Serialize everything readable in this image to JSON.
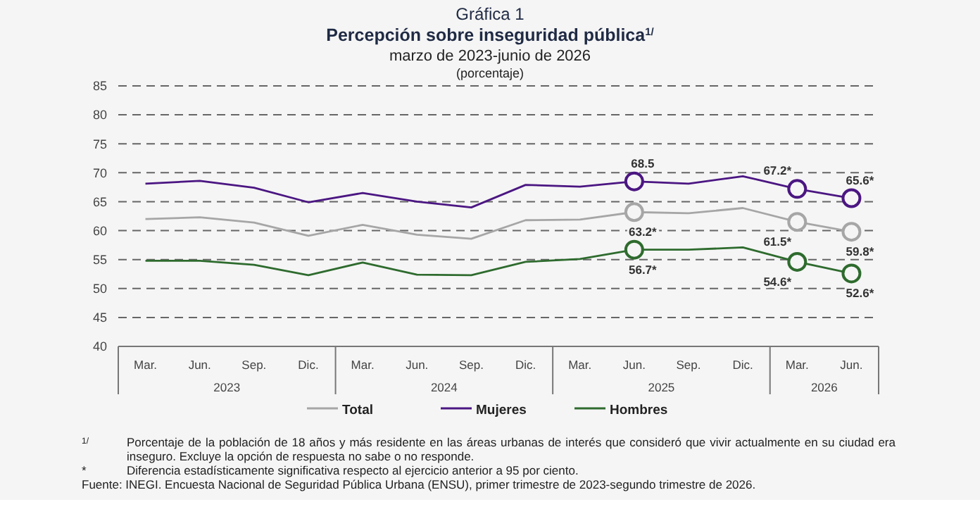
{
  "chart_data": {
    "type": "line",
    "title": "Percepción sobre inseguridad pública$^{1/}$",
    "subtitle": "marzo de 2023-junio de 2026",
    "ylabel": "(porcentaje)",
    "categories": [
      "Mar.",
      "Jun.",
      "Sep.",
      "Dic.",
      "Mar.",
      "Jun.",
      "Sep.",
      "Dic.",
      "Mar.",
      "Jun.",
      "Sep.",
      "Dic.",
      "Mar.",
      "Jun."
    ],
    "series": [
      {
        "name": "Total",
        "color": "#a6a6a6",
        "values": [
          62.0,
          62.3,
          61.4,
          59.1,
          61.0,
          59.3,
          58.6,
          61.8,
          61.9,
          63.2,
          63.0,
          63.9,
          61.5,
          59.8
        ],
        "value_labels": [
          null,
          null,
          null,
          null,
          null,
          null,
          null,
          null,
          null,
          "63.2*",
          null,
          null,
          "61.5*",
          "59.8*"
        ]
      },
      {
        "name": "Mujeres",
        "color": "#4b1682",
        "values": [
          68.1,
          68.6,
          67.4,
          64.9,
          66.5,
          65.0,
          64.0,
          67.9,
          67.6,
          68.5,
          68.1,
          69.4,
          67.2,
          65.6
        ],
        "value_labels": [
          null,
          null,
          null,
          null,
          null,
          null,
          null,
          null,
          null,
          "68.5",
          null,
          null,
          "67.2*",
          "65.6*"
        ]
      },
      {
        "name": "Hombres",
        "color": "#2e6b2e",
        "values": [
          54.8,
          54.8,
          54.1,
          52.3,
          54.5,
          52.4,
          52.3,
          54.6,
          55.1,
          56.7,
          56.7,
          57.1,
          54.6,
          52.6
        ],
        "value_labels": [
          null,
          null,
          null,
          null,
          null,
          null,
          null,
          null,
          null,
          "56.7*",
          null,
          null,
          "54.6*",
          "52.6*"
        ]
      }
    ],
    "ylim": [
      40,
      85
    ],
    "yticks": [
      40,
      45,
      50,
      55,
      60,
      65,
      70,
      75,
      80,
      85
    ],
    "grid": "y",
    "legend": "bottom",
    "line_style": "solid",
    "annotations": [
      "Gráfica 1",
      "2023",
      "2024",
      "2025",
      "2026",
      "1/",
      "Porcentaje de la población de 18 años y más residente en las áreas urbanas de interés que consideró que vivir actualmente en su ciudad era inseguro. Excluye la opción de respuesta no sabe o no responde.",
      "*",
      "Diferencia estadísticamente significativa respecto al ejercicio anterior a 95 por ciento.",
      "Fuente: INEGI. Encuesta Nacional de Seguridad Pública Urbana (ENSU), primer trimestre de 2023-segundo trimestre de 2026."
    ]
  }
}
